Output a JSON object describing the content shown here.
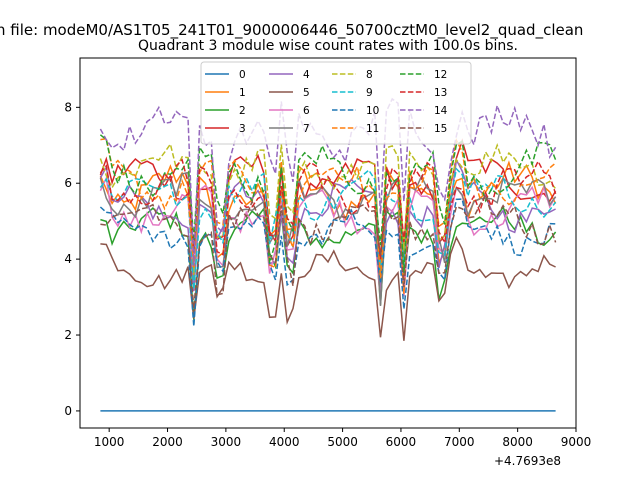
{
  "chart_data": {
    "type": "line",
    "suptitle": "n file: modeM0/AS1T05_241T01_9000006446_50700cztM0_level2_quad_clean",
    "title": "Quadrant 3 module wise count rates with 100.0s bins.",
    "xlabel": "",
    "ylabel": "",
    "xlim": [
      500,
      9000
    ],
    "ylim": [
      -0.45,
      9.3
    ],
    "x_ticks": [
      1000,
      2000,
      3000,
      4000,
      5000,
      6000,
      7000,
      8000,
      9000
    ],
    "y_ticks": [
      0,
      2,
      4,
      6,
      8
    ],
    "x_offset_label": "+4.7693e8",
    "x_range": [
      850,
      8650
    ],
    "legend": {
      "placement": "top-center",
      "columns": 4
    },
    "dips": [
      2450,
      2900,
      3800,
      4100,
      5650,
      6050,
      6700
    ],
    "series": [
      {
        "name": "0",
        "color": "#1f77b4",
        "dash": "solid",
        "base": 0.0,
        "amp": 0.0,
        "dipdepth": 0.0
      },
      {
        "name": "1",
        "color": "#ff7f0e",
        "dash": "solid",
        "base": 5.8,
        "amp": 0.45,
        "dipdepth": 2.6
      },
      {
        "name": "2",
        "color": "#2ca02c",
        "dash": "solid",
        "base": 4.8,
        "amp": 0.35,
        "dipdepth": 2.4
      },
      {
        "name": "3",
        "color": "#d62728",
        "dash": "solid",
        "base": 6.1,
        "amp": 0.4,
        "dipdepth": 2.8
      },
      {
        "name": "4",
        "color": "#9467bd",
        "dash": "solid",
        "base": 5.4,
        "amp": 0.4,
        "dipdepth": 2.5
      },
      {
        "name": "5",
        "color": "#8c564b",
        "dash": "solid",
        "base": 3.7,
        "amp": 0.3,
        "dipdepth": 1.9
      },
      {
        "name": "6",
        "color": "#e377c2",
        "dash": "solid",
        "base": 5.3,
        "amp": 0.4,
        "dipdepth": 2.5
      },
      {
        "name": "7",
        "color": "#7f7f7f",
        "dash": "solid",
        "base": 5.6,
        "amp": 0.4,
        "dipdepth": 2.6
      },
      {
        "name": "8",
        "color": "#bcbd22",
        "dash": "dashed",
        "base": 6.4,
        "amp": 0.4,
        "dipdepth": 2.9
      },
      {
        "name": "9",
        "color": "#17becf",
        "dash": "dashed",
        "base": 5.7,
        "amp": 0.4,
        "dipdepth": 2.6
      },
      {
        "name": "10",
        "color": "#1f77b4",
        "dash": "dashed",
        "base": 4.7,
        "amp": 0.35,
        "dipdepth": 2.3
      },
      {
        "name": "11",
        "color": "#ff7f0e",
        "dash": "dashed",
        "base": 6.0,
        "amp": 0.4,
        "dipdepth": 2.7
      },
      {
        "name": "12",
        "color": "#2ca02c",
        "dash": "dashed",
        "base": 6.3,
        "amp": 0.45,
        "dipdepth": 2.9
      },
      {
        "name": "13",
        "color": "#d62728",
        "dash": "dashed",
        "base": 5.9,
        "amp": 0.45,
        "dipdepth": 2.8
      },
      {
        "name": "14",
        "color": "#9467bd",
        "dash": "dashed",
        "base": 7.4,
        "amp": 0.5,
        "dipdepth": 3.4
      },
      {
        "name": "15",
        "color": "#8c564b",
        "dash": "dashed",
        "base": 5.0,
        "amp": 0.4,
        "dipdepth": 2.4
      }
    ]
  }
}
